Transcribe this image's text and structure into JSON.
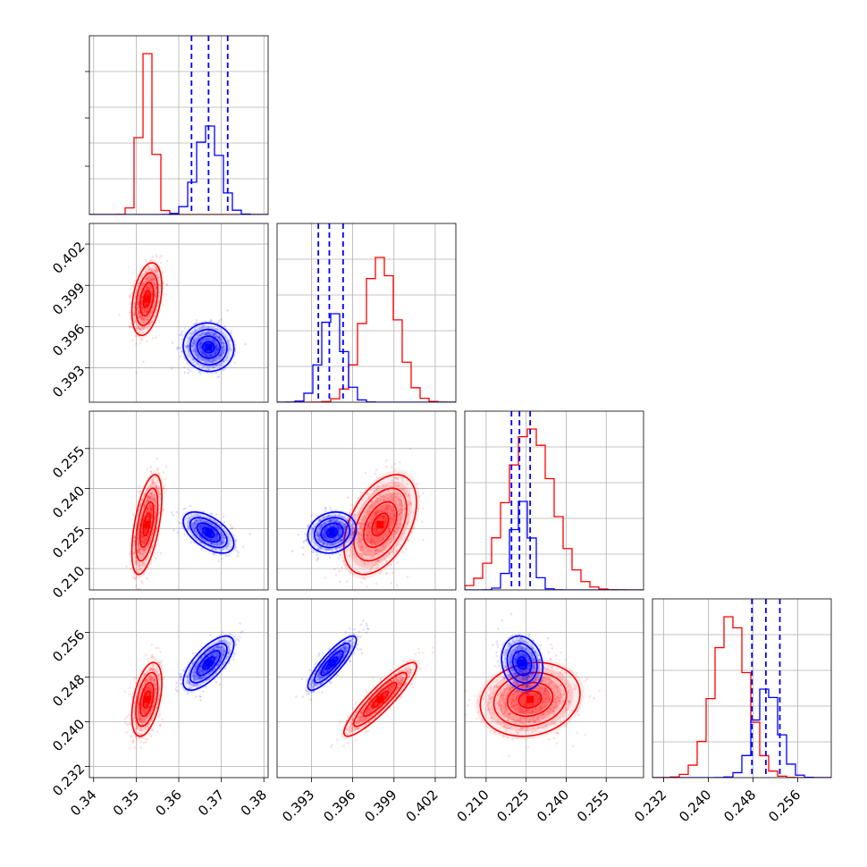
{
  "chart_data": {
    "type": "corner",
    "series": [
      {
        "name": "",
        "color": "#ff0000",
        "mean": [
          0.3525,
          0.398,
          0.2265,
          0.244
        ],
        "std": [
          0.0016,
          0.0012,
          0.0085,
          0.003
        ]
      },
      {
        "name": "",
        "color": "#0000ff",
        "mean": [
          0.367,
          0.3945,
          0.2235,
          0.2505
        ],
        "std": [
          0.0027,
          0.0008,
          0.0035,
          0.0022
        ]
      }
    ],
    "correlations": {
      "red": {
        "1-0": 0.35,
        "2-0": 0.55,
        "2-1": 0.45,
        "3-0": 0.45,
        "3-1": 0.9,
        "3-2": 0.15
      },
      "blue": {
        "1-0": -0.05,
        "2-0": -0.55,
        "2-1": 0.15,
        "3-0": 0.7,
        "3-1": 0.85,
        "3-2": -0.15
      }
    },
    "quantile_lines": [
      [
        0.363,
        0.367,
        0.3715
      ],
      [
        0.3935,
        0.3943,
        0.3953
      ],
      [
        0.2195,
        0.2225,
        0.2265
      ],
      [
        0.2478,
        0.2503,
        0.2528
      ]
    ],
    "ranges": [
      [
        0.339,
        0.381
      ],
      [
        0.3905,
        0.4035
      ],
      [
        0.202,
        0.269
      ],
      [
        0.23,
        0.262
      ]
    ],
    "hist_ymax": [
      0.27,
      0.168,
      0.113,
      0.151
    ],
    "ticks": [
      [
        "0.34",
        "0.35",
        "0.36",
        "0.37",
        "0.38"
      ],
      [
        "0.393",
        "0.396",
        "0.399",
        "0.402"
      ],
      [
        "0.210",
        "0.225",
        "0.240",
        "0.255"
      ],
      [
        "0.232",
        "0.240",
        "0.248",
        "0.256"
      ]
    ],
    "hist_grid_fractions": [
      [
        0.2,
        0.4,
        0.6,
        0.8
      ]
    ],
    "grid": true,
    "xlabel": "",
    "ylabel": "",
    "title": ""
  }
}
